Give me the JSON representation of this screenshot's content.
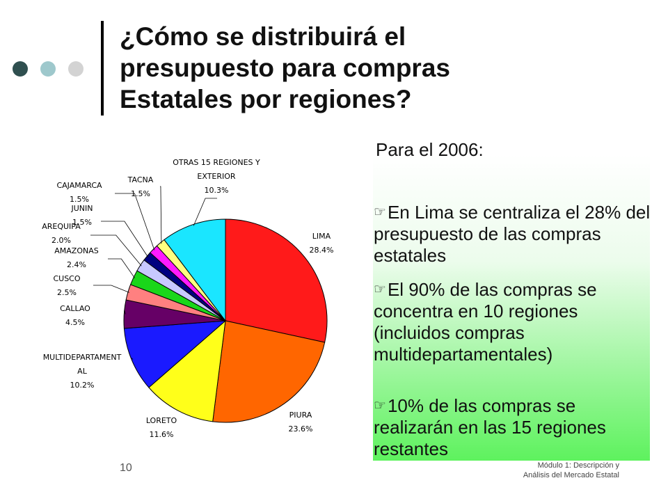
{
  "title_lines": [
    "¿Cómo se distribuirá el",
    "presupuesto para compras",
    "Estatales por regiones?"
  ],
  "colors": {
    "dot1": "#2f4f4f",
    "dot2": "#9ec8cc",
    "dot3": "#d3d3d3"
  },
  "chart_data": {
    "type": "pie",
    "slices": [
      {
        "name": "LIMA",
        "value": 28.4,
        "value_label": "28.4%",
        "color": "#ff1a1a"
      },
      {
        "name": "PIURA",
        "value": 23.6,
        "value_label": "23.6%",
        "color": "#ff6600"
      },
      {
        "name": "LORETO",
        "value": 11.6,
        "value_label": "11.6%",
        "color": "#ffff1a"
      },
      {
        "name": "MULTIDEPARTAMENTAL",
        "name_lines": [
          "MULTIDEPARTAMENT",
          "AL"
        ],
        "value": 10.2,
        "value_label": "10.2%",
        "color": "#1a1aff"
      },
      {
        "name": "CALLAO",
        "value": 4.5,
        "value_label": "4.5%",
        "color": "#660066"
      },
      {
        "name": "CUSCO",
        "value": 2.5,
        "value_label": "2.5%",
        "color": "#ff8080"
      },
      {
        "name": "AMAZONAS",
        "value": 2.4,
        "value_label": "2.4%",
        "color": "#1ad61a"
      },
      {
        "name": "AREQUIPA",
        "value": 2.0,
        "value_label": "2.0%",
        "color": "#c8c8ff"
      },
      {
        "name": "JUNIN",
        "value": 1.5,
        "value_label": "1.5%",
        "color": "#000080"
      },
      {
        "name": "CAJAMARCA",
        "value": 1.5,
        "value_label": "1.5%",
        "color": "#ff1aff"
      },
      {
        "name": "TACNA",
        "value": 1.5,
        "value_label": "1.5%",
        "color": "#ffff80"
      },
      {
        "name": "OTRAS 15 REGIONES Y EXTERIOR",
        "name_lines": [
          "OTRAS 15 REGIONES Y",
          "EXTERIOR"
        ],
        "value": 10.3,
        "value_label": "10.3%",
        "color": "#1ae6ff"
      }
    ]
  },
  "text": {
    "intro": "Para el 2006:",
    "bullets": [
      "En Lima se centraliza el 28% del presupuesto de las compras estatales",
      "El 90% de las compras se concentra en 10 regiones (incluidos compras multidepartamentales)",
      "10% de las compras se realizarán en las 15 regiones restantes"
    ]
  },
  "footer": {
    "page_number": "10",
    "module_lines": [
      "Módulo 1: Descripción y",
      "Análisis del Mercado Estatal"
    ]
  }
}
